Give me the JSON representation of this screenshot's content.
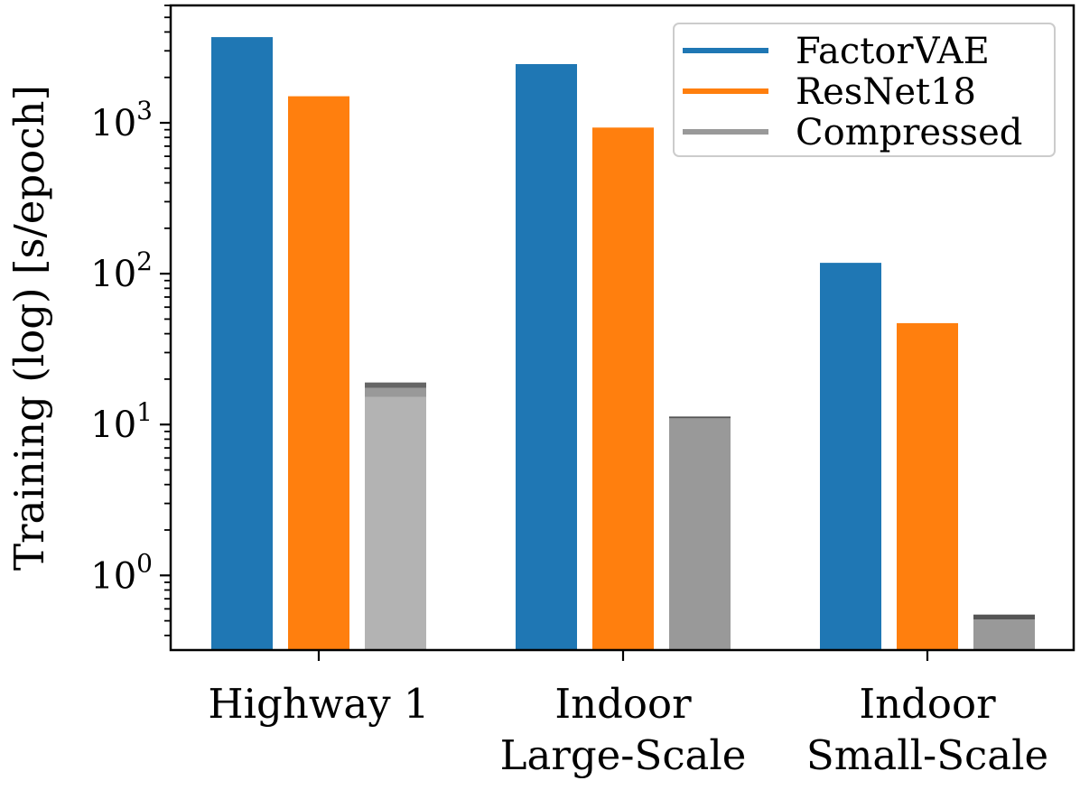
{
  "chart_data": {
    "type": "bar",
    "yscale": "log",
    "ylabel": "Training (log) [s/epoch]",
    "ylim": [
      0.32,
      6000
    ],
    "categories": [
      [
        "Highway 1"
      ],
      [
        "Indoor",
        "Large-Scale"
      ],
      [
        "Indoor",
        "Small-Scale"
      ]
    ],
    "yticks": [
      {
        "value": 1,
        "base": "10",
        "exp": "0"
      },
      {
        "value": 10,
        "base": "10",
        "exp": "1"
      },
      {
        "value": 100,
        "base": "10",
        "exp": "2"
      },
      {
        "value": 1000,
        "base": "10",
        "exp": "3"
      }
    ],
    "series": [
      {
        "name": "FactorVAE",
        "color": "#1f77b4",
        "values": [
          3700,
          2450,
          118
        ]
      },
      {
        "name": "ResNet18",
        "color": "#ff7f0e",
        "values": [
          1500,
          930,
          47
        ]
      },
      {
        "name": "Compressed",
        "color": "#999999",
        "values": [
          19,
          11.3,
          0.55
        ],
        "stacks": [
          [
            {
              "value": 15.2,
              "color": "#b3b3b3"
            },
            {
              "value": 17.5,
              "color": "#999999"
            },
            {
              "value": 19,
              "color": "#666666"
            }
          ],
          [
            {
              "value": 11.0,
              "color": "#999999"
            },
            {
              "value": 11.3,
              "color": "#555555"
            }
          ],
          [
            {
              "value": 0.51,
              "color": "#999999"
            },
            {
              "value": 0.55,
              "color": "#555555"
            }
          ]
        ]
      }
    ],
    "legend": {
      "placement": "top-right"
    }
  }
}
